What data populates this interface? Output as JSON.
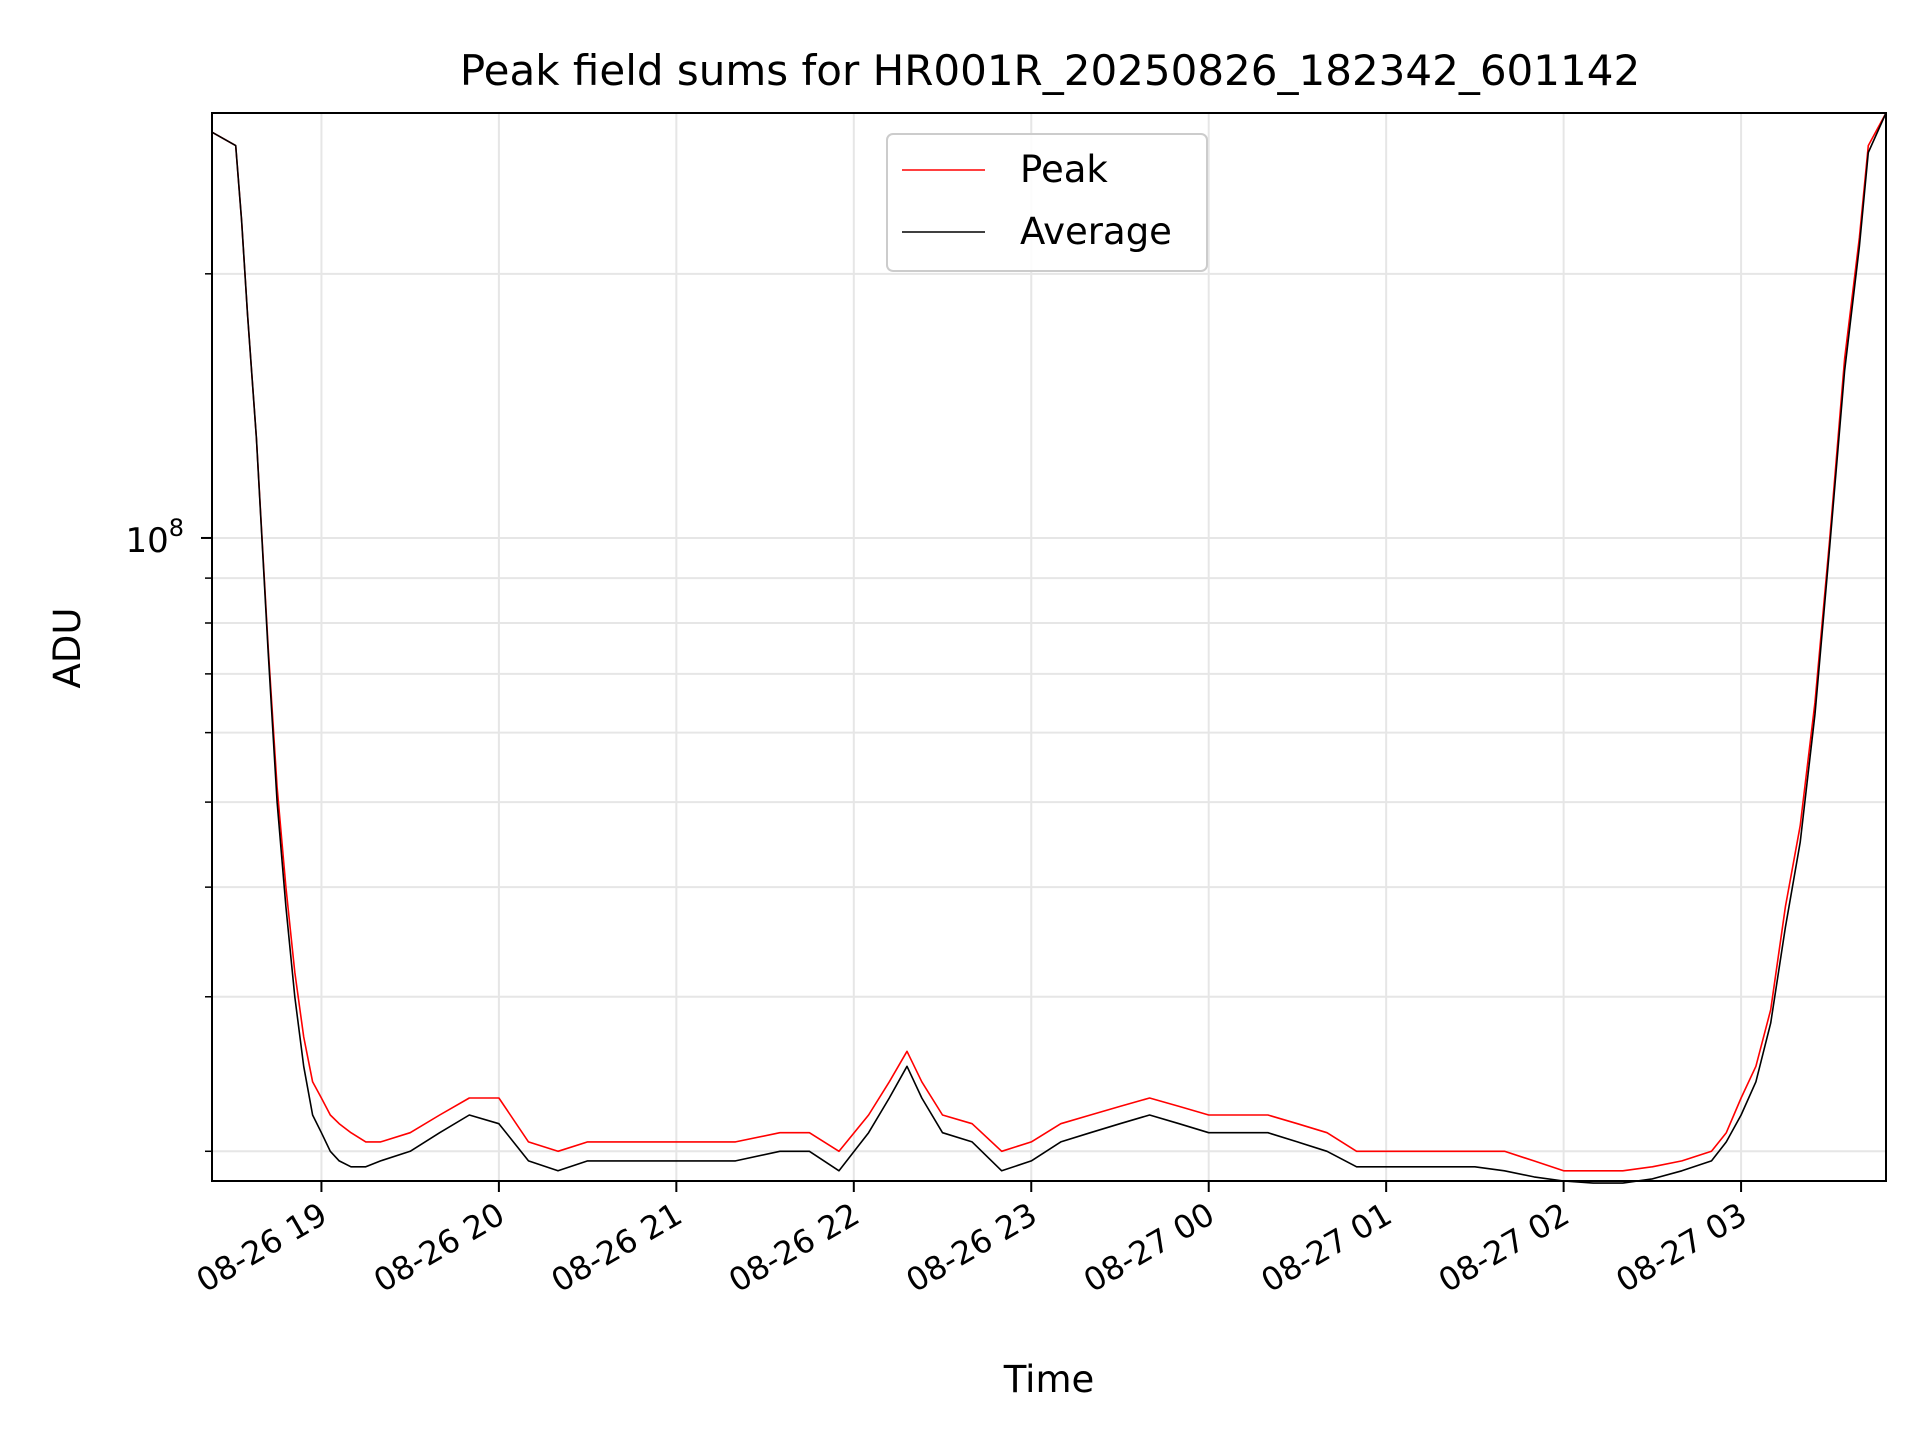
{
  "chart_data": {
    "type": "line",
    "title": "Peak field sums for HR001R_20250826_182342_601142",
    "xlabel": "Time",
    "ylabel": "ADU",
    "yscale": "log",
    "ylim": [
      18500000,
      305000000
    ],
    "xlim": [
      "2025-08-26 18:23",
      "2025-08-27 03:49"
    ],
    "grid": true,
    "legend_position": "top-center",
    "x_ticks": [
      {
        "t": "2025-08-26 19:00",
        "label": "08-26 19"
      },
      {
        "t": "2025-08-26 20:00",
        "label": "08-26 20"
      },
      {
        "t": "2025-08-26 21:00",
        "label": "08-26 21"
      },
      {
        "t": "2025-08-26 22:00",
        "label": "08-26 22"
      },
      {
        "t": "2025-08-26 23:00",
        "label": "08-26 23"
      },
      {
        "t": "2025-08-27 00:00",
        "label": "08-27 00"
      },
      {
        "t": "2025-08-27 01:00",
        "label": "08-27 01"
      },
      {
        "t": "2025-08-27 02:00",
        "label": "08-27 02"
      },
      {
        "t": "2025-08-27 03:00",
        "label": "08-27 03"
      }
    ],
    "y_ticks": [
      {
        "value": 100000000,
        "label_base": "10",
        "label_exp": "8"
      }
    ],
    "y_minor_ticks": [
      20000000,
      30000000,
      40000000,
      50000000,
      60000000,
      70000000,
      80000000,
      90000000,
      200000000
    ],
    "series": [
      {
        "name": "Peak",
        "color": "#ff0000",
        "x": [
          "2025-08-26 18:23",
          "2025-08-26 18:31",
          "2025-08-26 18:33",
          "2025-08-26 18:35",
          "2025-08-26 18:38",
          "2025-08-26 18:42",
          "2025-08-26 18:45",
          "2025-08-26 18:48",
          "2025-08-26 18:51",
          "2025-08-26 18:54",
          "2025-08-26 18:57",
          "2025-08-26 19:00",
          "2025-08-26 19:03",
          "2025-08-26 19:06",
          "2025-08-26 19:10",
          "2025-08-26 19:15",
          "2025-08-26 19:20",
          "2025-08-26 19:30",
          "2025-08-26 19:40",
          "2025-08-26 19:50",
          "2025-08-26 20:00",
          "2025-08-26 20:10",
          "2025-08-26 20:20",
          "2025-08-26 20:30",
          "2025-08-26 20:40",
          "2025-08-26 21:00",
          "2025-08-26 21:20",
          "2025-08-26 21:35",
          "2025-08-26 21:45",
          "2025-08-26 21:55",
          "2025-08-26 22:05",
          "2025-08-26 22:12",
          "2025-08-26 22:18",
          "2025-08-26 22:23",
          "2025-08-26 22:30",
          "2025-08-26 22:40",
          "2025-08-26 22:50",
          "2025-08-26 23:00",
          "2025-08-26 23:10",
          "2025-08-26 23:20",
          "2025-08-26 23:30",
          "2025-08-26 23:40",
          "2025-08-26 23:50",
          "2025-08-27 00:00",
          "2025-08-27 00:10",
          "2025-08-27 00:20",
          "2025-08-27 00:30",
          "2025-08-27 00:40",
          "2025-08-27 00:50",
          "2025-08-27 01:00",
          "2025-08-27 01:10",
          "2025-08-27 01:20",
          "2025-08-27 01:30",
          "2025-08-27 01:40",
          "2025-08-27 01:50",
          "2025-08-27 02:00",
          "2025-08-27 02:10",
          "2025-08-27 02:20",
          "2025-08-27 02:30",
          "2025-08-27 02:40",
          "2025-08-27 02:50",
          "2025-08-27 02:55",
          "2025-08-27 03:00",
          "2025-08-27 03:05",
          "2025-08-27 03:10",
          "2025-08-27 03:15",
          "2025-08-27 03:20",
          "2025-08-27 03:25",
          "2025-08-27 03:30",
          "2025-08-27 03:35",
          "2025-08-27 03:40",
          "2025-08-27 03:43",
          "2025-08-27 03:49"
        ],
        "values": [
          290000000.0,
          280000000.0,
          230000000.0,
          180000000.0,
          130000000.0,
          75000000.0,
          52000000.0,
          40000000.0,
          32000000.0,
          27000000.0,
          24000000.0,
          23000000.0,
          22000000.0,
          21500000.0,
          21000000.0,
          20500000.0,
          20500000.0,
          21000000.0,
          22000000.0,
          23000000.0,
          23000000.0,
          20500000.0,
          20000000.0,
          20500000.0,
          20500000.0,
          20500000.0,
          20500000.0,
          21000000.0,
          21000000.0,
          20000000.0,
          22000000.0,
          24000000.0,
          26000000.0,
          24000000.0,
          22000000.0,
          21500000.0,
          20000000.0,
          20500000.0,
          21500000.0,
          22000000.0,
          22500000.0,
          23000000.0,
          22500000.0,
          22000000.0,
          22000000.0,
          22000000.0,
          21500000.0,
          21000000.0,
          20000000.0,
          20000000.0,
          20000000.0,
          20000000.0,
          20000000.0,
          20000000.0,
          19500000.0,
          19000000.0,
          19000000.0,
          19000000.0,
          19200000.0,
          19500000.0,
          20000000.0,
          21000000.0,
          23000000.0,
          25000000.0,
          29000000.0,
          38000000.0,
          47000000.0,
          65000000.0,
          100000000.0,
          160000000.0,
          220000000.0,
          280000000.0,
          305000000.0
        ]
      },
      {
        "name": "Average",
        "color": "#000000",
        "x": [
          "2025-08-26 18:23",
          "2025-08-26 18:31",
          "2025-08-26 18:33",
          "2025-08-26 18:35",
          "2025-08-26 18:38",
          "2025-08-26 18:42",
          "2025-08-26 18:45",
          "2025-08-26 18:48",
          "2025-08-26 18:51",
          "2025-08-26 18:54",
          "2025-08-26 18:57",
          "2025-08-26 19:00",
          "2025-08-26 19:03",
          "2025-08-26 19:06",
          "2025-08-26 19:10",
          "2025-08-26 19:15",
          "2025-08-26 19:20",
          "2025-08-26 19:30",
          "2025-08-26 19:40",
          "2025-08-26 19:50",
          "2025-08-26 20:00",
          "2025-08-26 20:10",
          "2025-08-26 20:20",
          "2025-08-26 20:30",
          "2025-08-26 20:40",
          "2025-08-26 21:00",
          "2025-08-26 21:20",
          "2025-08-26 21:35",
          "2025-08-26 21:45",
          "2025-08-26 21:55",
          "2025-08-26 22:05",
          "2025-08-26 22:12",
          "2025-08-26 22:18",
          "2025-08-26 22:23",
          "2025-08-26 22:30",
          "2025-08-26 22:40",
          "2025-08-26 22:50",
          "2025-08-26 23:00",
          "2025-08-26 23:10",
          "2025-08-26 23:20",
          "2025-08-26 23:30",
          "2025-08-26 23:40",
          "2025-08-26 23:50",
          "2025-08-27 00:00",
          "2025-08-27 00:10",
          "2025-08-27 00:20",
          "2025-08-27 00:30",
          "2025-08-27 00:40",
          "2025-08-27 00:50",
          "2025-08-27 01:00",
          "2025-08-27 01:10",
          "2025-08-27 01:20",
          "2025-08-27 01:30",
          "2025-08-27 01:40",
          "2025-08-27 01:50",
          "2025-08-27 02:00",
          "2025-08-27 02:10",
          "2025-08-27 02:20",
          "2025-08-27 02:30",
          "2025-08-27 02:40",
          "2025-08-27 02:50",
          "2025-08-27 02:55",
          "2025-08-27 03:00",
          "2025-08-27 03:05",
          "2025-08-27 03:10",
          "2025-08-27 03:15",
          "2025-08-27 03:20",
          "2025-08-27 03:25",
          "2025-08-27 03:30",
          "2025-08-27 03:35",
          "2025-08-27 03:40",
          "2025-08-27 03:43",
          "2025-08-27 03:49"
        ],
        "values": [
          290000000.0,
          280000000.0,
          230000000.0,
          180000000.0,
          130000000.0,
          74000000.0,
          50000000.0,
          38000000.0,
          30000000.0,
          25000000.0,
          22000000.0,
          21000000.0,
          20000000.0,
          19500000.0,
          19200000.0,
          19200000.0,
          19500000.0,
          20000000.0,
          21000000.0,
          22000000.0,
          21500000.0,
          19500000.0,
          19000000.0,
          19500000.0,
          19500000.0,
          19500000.0,
          19500000.0,
          20000000.0,
          20000000.0,
          19000000.0,
          21000000.0,
          23000000.0,
          25000000.0,
          23000000.0,
          21000000.0,
          20500000.0,
          19000000.0,
          19500000.0,
          20500000.0,
          21000000.0,
          21500000.0,
          22000000.0,
          21500000.0,
          21000000.0,
          21000000.0,
          21000000.0,
          20500000.0,
          20000000.0,
          19200000.0,
          19200000.0,
          19200000.0,
          19200000.0,
          19200000.0,
          19000000.0,
          18700000.0,
          18500000.0,
          18400000.0,
          18400000.0,
          18600000.0,
          19000000.0,
          19500000.0,
          20500000.0,
          22000000.0,
          24000000.0,
          28000000.0,
          36000000.0,
          45000000.0,
          63000000.0,
          98000000.0,
          155000000.0,
          215000000.0,
          275000000.0,
          305000000.0
        ]
      }
    ]
  }
}
